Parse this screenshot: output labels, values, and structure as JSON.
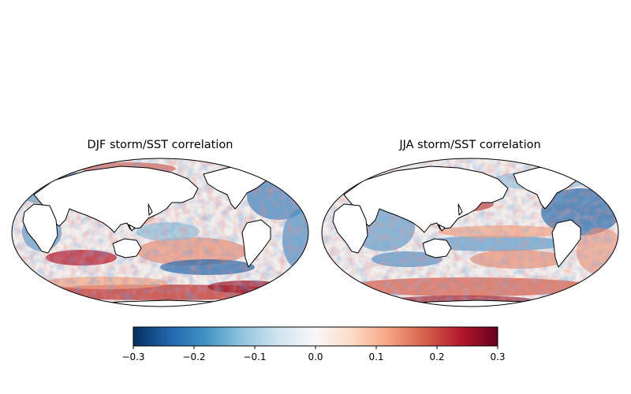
{
  "maps": [
    {
      "id": "djf",
      "title": "DJF storm/SST correlation"
    },
    {
      "id": "jja",
      "title": "JJA storm/SST correlation"
    }
  ],
  "colorbar": {
    "colormap": "RdBu_r",
    "range": [
      -0.3,
      0.3
    ],
    "ticks": [
      {
        "value": -0.3,
        "label": "−0.3"
      },
      {
        "value": -0.2,
        "label": "−0.2"
      },
      {
        "value": -0.1,
        "label": "−0.1"
      },
      {
        "value": 0.0,
        "label": "0.0"
      },
      {
        "value": 0.1,
        "label": "0.1"
      },
      {
        "value": 0.2,
        "label": "0.2"
      },
      {
        "value": 0.3,
        "label": "0.3"
      }
    ],
    "stops": [
      "#053061",
      "#2166ac",
      "#4393c3",
      "#92c5de",
      "#d1e5f0",
      "#f7f7f7",
      "#fddbc7",
      "#f4a582",
      "#d6604d",
      "#b2182b",
      "#67001f"
    ]
  },
  "colors": {
    "land": "#ffffff",
    "coast": "#000000"
  }
}
